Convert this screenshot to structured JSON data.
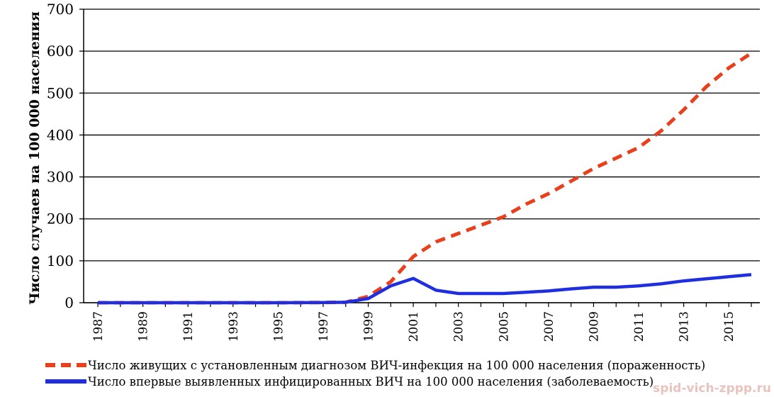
{
  "chart_data": {
    "type": "line",
    "ylabel": "Число случаев на 100 000 населения",
    "xlabel": "",
    "ylim": [
      0,
      700
    ],
    "yticks": [
      0,
      100,
      200,
      300,
      400,
      500,
      600,
      700
    ],
    "xlim": [
      1987,
      2016
    ],
    "xticks": [
      1987,
      1989,
      1991,
      1993,
      1995,
      1997,
      1999,
      2001,
      2003,
      2005,
      2007,
      2009,
      2011,
      2013,
      2015
    ],
    "grid": "horizontal",
    "legend_position": "bottom",
    "series": [
      {
        "name": "Число живущих с установленным диагнозом ВИЧ-инфекция на 100 000 населения (пораженность)",
        "color": "#e8401c",
        "style": "dashed",
        "x": [
          1987,
          1989,
          1991,
          1993,
          1995,
          1997,
          1998,
          1999,
          2000,
          2001,
          2002,
          2003,
          2004,
          2005,
          2006,
          2007,
          2008,
          2009,
          2010,
          2011,
          2012,
          2013,
          2014,
          2015,
          2016
        ],
        "values": [
          0,
          0,
          0,
          0,
          0,
          0.5,
          1,
          15,
          50,
          110,
          145,
          165,
          185,
          205,
          235,
          260,
          290,
          320,
          345,
          370,
          410,
          460,
          515,
          560,
          595
        ]
      },
      {
        "name": "Число впервые выявленных инфицированных ВИЧ на 100 000 населения (заболеваемость)",
        "color": "#1f2fe0",
        "style": "solid",
        "x": [
          1987,
          1989,
          1991,
          1993,
          1995,
          1997,
          1998,
          1999,
          2000,
          2001,
          2002,
          2003,
          2004,
          2005,
          2006,
          2007,
          2008,
          2009,
          2010,
          2011,
          2012,
          2013,
          2014,
          2015,
          2016
        ],
        "values": [
          0,
          0,
          0,
          0,
          0,
          0.5,
          1,
          10,
          40,
          58,
          30,
          22,
          22,
          22,
          25,
          28,
          33,
          37,
          37,
          40,
          45,
          52,
          57,
          62,
          67
        ]
      }
    ]
  },
  "watermark": "spid-vich-zppp.ru"
}
